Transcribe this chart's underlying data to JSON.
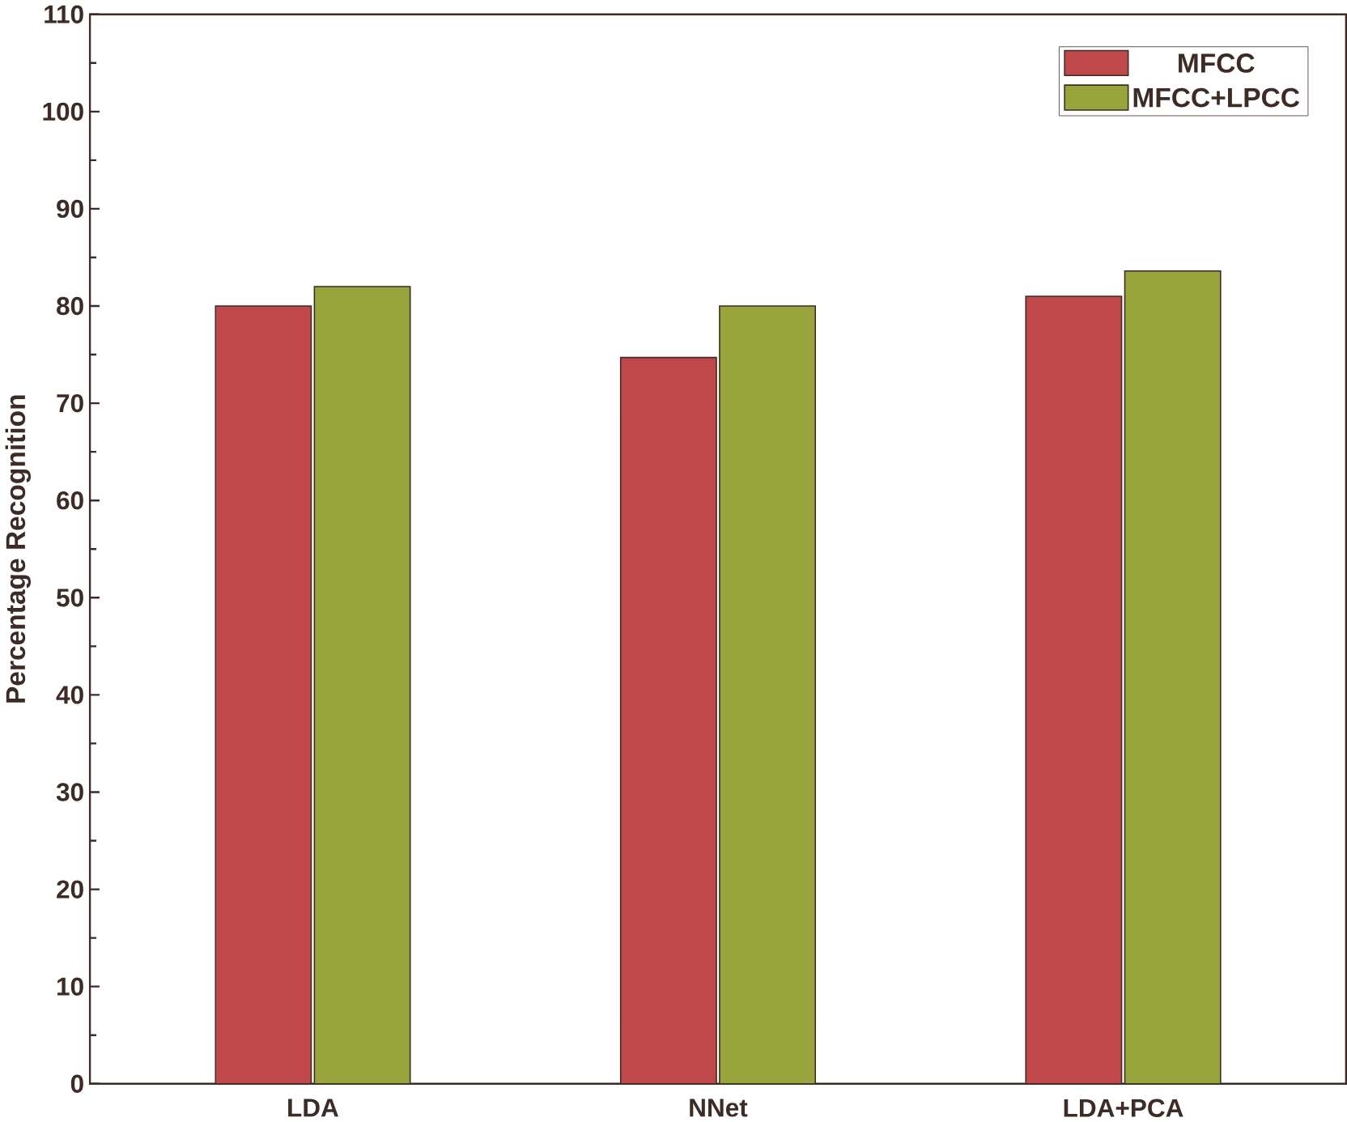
{
  "chart_data": {
    "type": "bar",
    "ylabel": "Percentage Recognition",
    "categories": [
      "LDA",
      "NNet",
      "LDA+PCA"
    ],
    "series": [
      {
        "name": "MFCC",
        "color": "#c0474a",
        "values": [
          80,
          74.7,
          81
        ]
      },
      {
        "name": "MFCC+LPCC",
        "color": "#98a43c",
        "values": [
          82,
          80,
          83.6
        ]
      }
    ],
    "ylim": [
      0,
      110
    ],
    "yticks": [
      0,
      10,
      20,
      30,
      40,
      50,
      60,
      70,
      80,
      90,
      100,
      110
    ],
    "legend": "top right",
    "grid": false
  }
}
